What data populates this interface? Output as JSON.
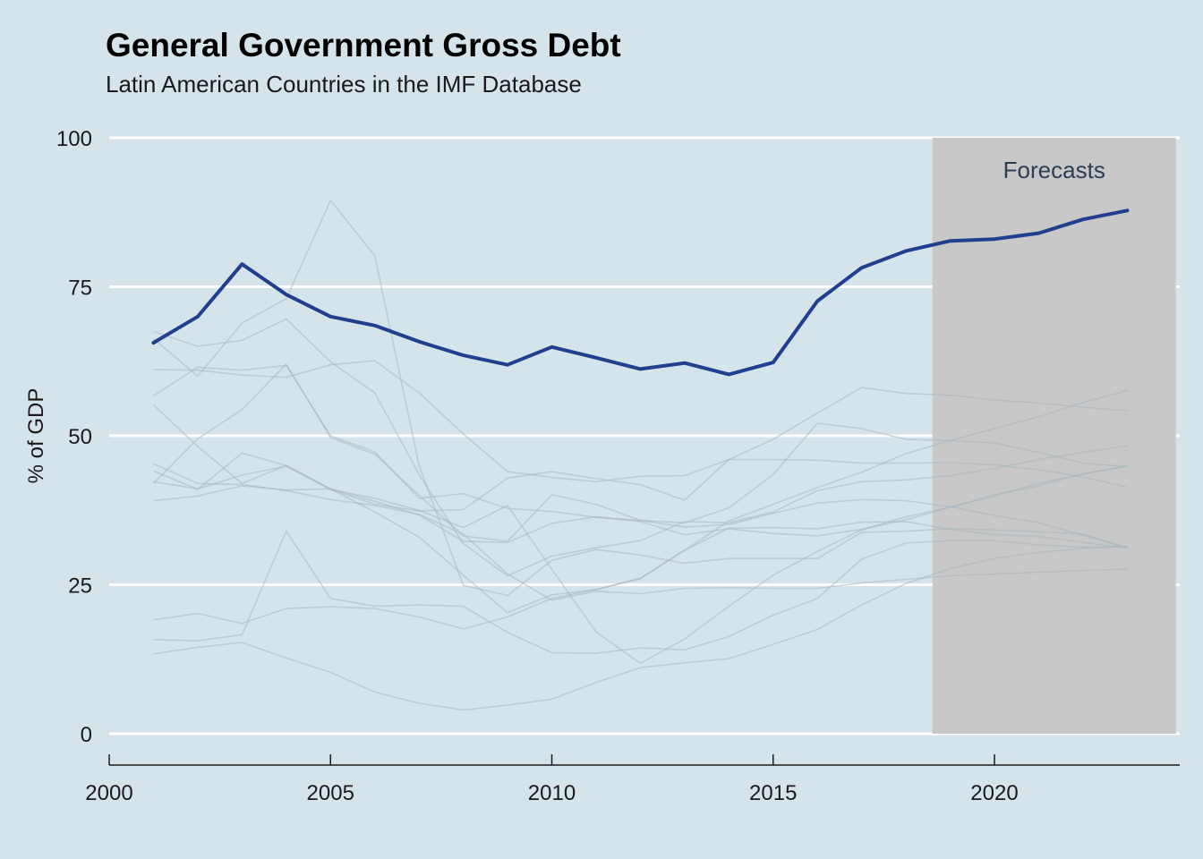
{
  "chart_data": {
    "type": "line",
    "title": "General Government Gross Debt",
    "subtitle": "Latin American Countries in the IMF Database",
    "xlabel": "",
    "ylabel": "% of GDP",
    "xlim": [
      2000,
      2024
    ],
    "ylim": [
      0,
      100
    ],
    "x_ticks": [
      "2000",
      "2005",
      "2010",
      "2015",
      "2020"
    ],
    "y_ticks": [
      "0",
      "25",
      "50",
      "75",
      "100"
    ],
    "grid": "horizontal",
    "forecast_region": {
      "x_start": 2018.6,
      "x_end": 2024.1,
      "label": "Forecasts",
      "color": "#c8c8c8"
    },
    "colors": {
      "background": "#d5e4eb",
      "highlight": "#213f8e",
      "others": "#a9b6bd",
      "grid": "#ffffff",
      "annotation": "#2c3e55"
    },
    "x": [
      2001,
      2002,
      2003,
      2004,
      2005,
      2006,
      2007,
      2008,
      2009,
      2010,
      2011,
      2012,
      2013,
      2014,
      2015,
      2016,
      2017,
      2018,
      2019,
      2020,
      2021,
      2022,
      2023
    ],
    "highlight_series": {
      "values": [
        65.6,
        70,
        78.8,
        73.7,
        70,
        68.5,
        65.8,
        63.5,
        61.9,
        64.9,
        63.1,
        61.2,
        62.2,
        60.3,
        62.3,
        72.6,
        78.2,
        81,
        82.7,
        83,
        84,
        86.3,
        87.8
      ]
    },
    "other_series": [
      {
        "values": [
          67.5,
          65,
          66,
          69.6,
          62.4,
          57.2,
          43.5,
          31.9,
          26.5,
          29.8,
          31.2,
          32.4,
          35.6,
          35.4,
          37.2,
          40.8,
          42.3,
          42.6,
          43.3,
          44.5,
          46,
          47.2,
          48.3
        ]
      },
      {
        "values": [
          66.3,
          60,
          68.9,
          73,
          89.5,
          80.2,
          45,
          24.9,
          23.2,
          29.1,
          30.9,
          30,
          28.6,
          29.4,
          29.4,
          29.4,
          33.8,
          34,
          34.4,
          34.2,
          33.9,
          33.5,
          31.2
        ]
      },
      {
        "values": [
          61.1,
          61,
          60.2,
          59.8,
          61.9,
          62.6,
          57.2,
          50.3,
          44,
          43,
          42.3,
          43.2,
          43.3,
          46,
          49.4,
          53.8,
          58.1,
          57.1,
          56.8,
          56,
          55.5,
          54.8,
          54.2
        ]
      },
      {
        "values": [
          56.7,
          61.5,
          61,
          61.8,
          50,
          47.3,
          39.5,
          40.3,
          37.8,
          37.3,
          36.3,
          35.8,
          35.4,
          37.9,
          43.5,
          52.1,
          51.2,
          49.4,
          49.2,
          48.8,
          47.2,
          45.4,
          44.8
        ]
      },
      {
        "values": [
          55.2,
          48.2,
          42,
          45,
          41,
          38.5,
          37.4,
          37.6,
          42.9,
          44,
          42.8,
          41.8,
          39.2,
          46,
          46,
          45.9,
          45.4,
          45.4,
          45.5,
          45.1,
          44.3,
          43.1,
          41.4
        ]
      },
      {
        "values": [
          44.1,
          41,
          47.1,
          45,
          41.1,
          37.2,
          33,
          26.6,
          20.3,
          23.3,
          24.2,
          26.1,
          30.8,
          35.7,
          38.5,
          41.3,
          43.9,
          47,
          49.2,
          51.2,
          53.2,
          55.6,
          57.6
        ]
      },
      {
        "values": [
          42,
          49.5,
          54.4,
          62,
          49.7,
          46.9,
          40,
          33.2,
          32.3,
          40.1,
          38.5,
          35.8,
          34.7,
          35.1,
          37,
          38.7,
          39.3,
          39.1,
          38.1,
          36.6,
          35.4,
          33.3,
          31.2
        ]
      },
      {
        "values": [
          42.3,
          41.1,
          43.4,
          44.9,
          41,
          39.5,
          37.5,
          34.6,
          38.3,
          27.6,
          17.1,
          11.8,
          15.9,
          21.4,
          26.6,
          30.6,
          34.2,
          36.4,
          38,
          39.9,
          42,
          43.6,
          44.9
        ]
      },
      {
        "values": [
          39.1,
          39.9,
          41.6,
          40.9,
          41.1,
          39,
          36.7,
          32.3,
          32.1,
          35.3,
          36.4,
          35.6,
          33.4,
          34.4,
          33.6,
          33.2,
          34.3,
          35.9,
          38,
          40.1,
          41.6,
          43.6,
          44.9
        ]
      },
      {
        "values": [
          19.1,
          20.2,
          18.5,
          21,
          21.3,
          21,
          19.6,
          17.6,
          19.6,
          22.7,
          24.2,
          26,
          30.8,
          34.5,
          34.6,
          34.4,
          35.5,
          35.6,
          34.3,
          33.4,
          33.1,
          32.1,
          31.2
        ]
      },
      {
        "values": [
          15.8,
          15.6,
          16.6,
          34,
          22.7,
          21.4,
          21.6,
          21.4,
          17,
          13.6,
          13.5,
          14.4,
          14.1,
          16.3,
          19.9,
          22.7,
          29.3,
          32,
          32.4,
          32.4,
          31.7,
          31.3,
          31.4
        ]
      },
      {
        "values": [
          13.4,
          14.5,
          15.3,
          12.7,
          10.3,
          7,
          5.1,
          4,
          4.8,
          5.8,
          8.6,
          11.1,
          11.9,
          12.6,
          15,
          17.5,
          21.6,
          25.2,
          27.7,
          29.4,
          30.4,
          31.1,
          31.4
        ]
      },
      {
        "values": [
          45.3,
          42,
          41.8,
          40.8,
          39.3,
          38.3,
          36.8,
          33.5,
          26.8,
          22.4,
          23.9,
          23.5,
          24.4,
          24.5,
          24.4,
          24.4,
          25.3,
          25.9,
          26.5,
          26.8,
          27.1,
          27.4,
          27.6
        ]
      }
    ]
  }
}
